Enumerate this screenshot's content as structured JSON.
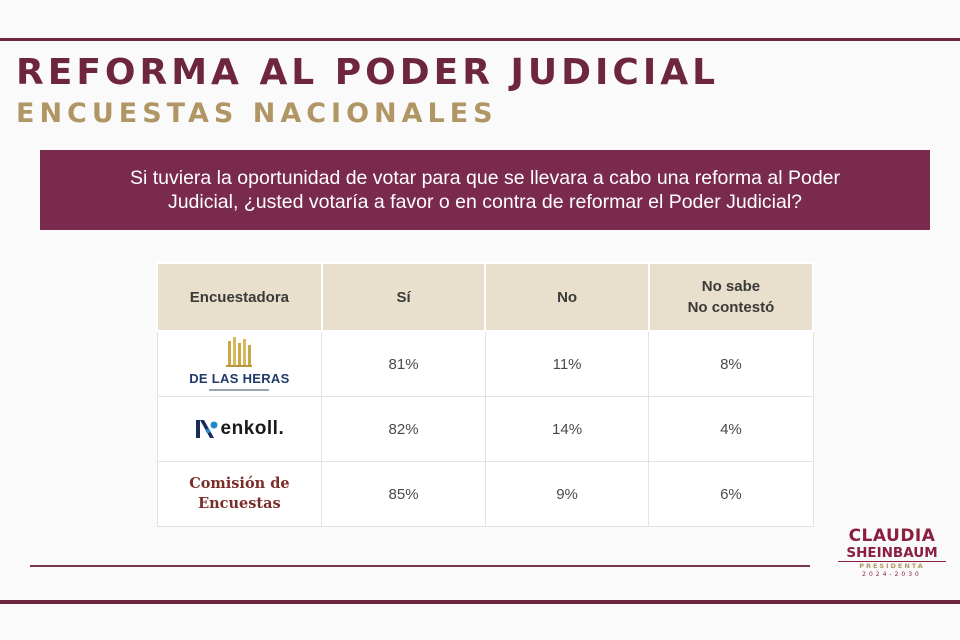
{
  "header": {
    "title": "REFORMA AL PODER JUDICIAL",
    "subtitle": "ENCUESTAS NACIONALES"
  },
  "question": {
    "line1": "Si tuviera la oportunidad de votar para que se llevara a cabo una reforma al Poder",
    "line2": "Judicial, ¿usted votaría a favor o en contra de reformar el Poder Judicial?"
  },
  "table": {
    "headers": {
      "pollster": "Encuestadora",
      "yes": "Sí",
      "no": "No",
      "dk_line1": "No sabe",
      "dk_line2": "No contestó"
    },
    "rows": [
      {
        "pollster": "DE LAS HERAS",
        "yes": "81%",
        "no": "11%",
        "dk": "8%"
      },
      {
        "pollster": "enkoll.",
        "yes": "82%",
        "no": "14%",
        "dk": "4%"
      },
      {
        "pollster_line1": "Comisión de",
        "pollster_line2": "Encuestas",
        "yes": "85%",
        "no": "9%",
        "dk": "6%"
      }
    ]
  },
  "brand": {
    "line1": "CLAUDIA",
    "line2": "SHEINBAUM",
    "line3": "PRESIDENTA",
    "line4": "2024-2030"
  },
  "colors": {
    "primary": "#7a2a4d",
    "gold": "#b09664",
    "header_cell": "#e8dfcd",
    "heras_blue": "#1f3a6b",
    "comision_red": "#7a2e2a"
  },
  "icons": {
    "heras_logo": "gold-building-mark",
    "enkoll_logo": "enkoll-symbol"
  }
}
